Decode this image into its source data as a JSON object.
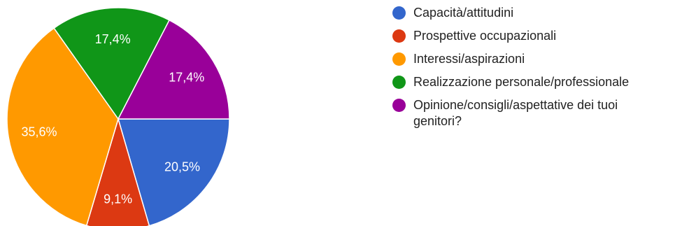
{
  "chart_data": {
    "type": "pie",
    "categories": [
      "Capacità/attitudini",
      "Prospettive occupazionali",
      "Interessi/aspirazioni",
      "Realizzazione personale/professionale",
      "Opinione/consigli/aspettative dei tuoi genitori?"
    ],
    "values": [
      20.5,
      9.1,
      35.6,
      17.4,
      17.4
    ],
    "labels": [
      "20,5%",
      "9,1%",
      "35,6%",
      "17,4%",
      "17,4%"
    ],
    "colors": [
      "#3366cc",
      "#dc3912",
      "#ff9900",
      "#109618",
      "#990099"
    ],
    "start": "3 o'clock",
    "direction": "clockwise",
    "legend_position": "right"
  },
  "legend": {
    "items": [
      {
        "label": "Capacità/attitudini",
        "color": "#3366cc"
      },
      {
        "label": "Prospettive occupazionali",
        "color": "#dc3912"
      },
      {
        "label": "Interessi/aspirazioni",
        "color": "#ff9900"
      },
      {
        "label": "Realizzazione personale/professionale",
        "color": "#109618"
      },
      {
        "label": "Opinione/consigli/aspettative dei tuoi genitori?",
        "color": "#990099"
      }
    ]
  }
}
